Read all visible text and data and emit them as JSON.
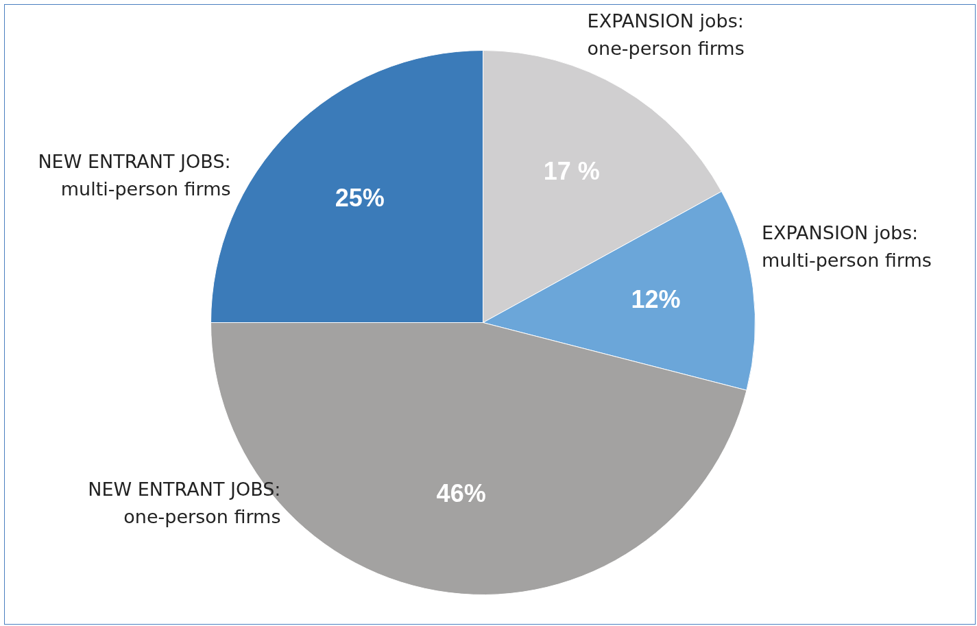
{
  "chart_data": {
    "type": "pie",
    "categories": [
      "EXPANSION jobs:\none-person firms",
      "EXPANSION jobs:\nmulti-person firms",
      "NEW ENTRANT JOBS:\none-person firms",
      "NEW ENTRANT JOBS:\nmulti-person firms"
    ],
    "values": [
      17,
      12,
      46,
      25
    ],
    "colors": [
      "#d0cfd0",
      "#6ba6d9",
      "#a3a2a1",
      "#3b7bb9"
    ],
    "value_labels": [
      "17 %",
      "12%",
      "46%",
      "25%"
    ],
    "legend": false
  }
}
